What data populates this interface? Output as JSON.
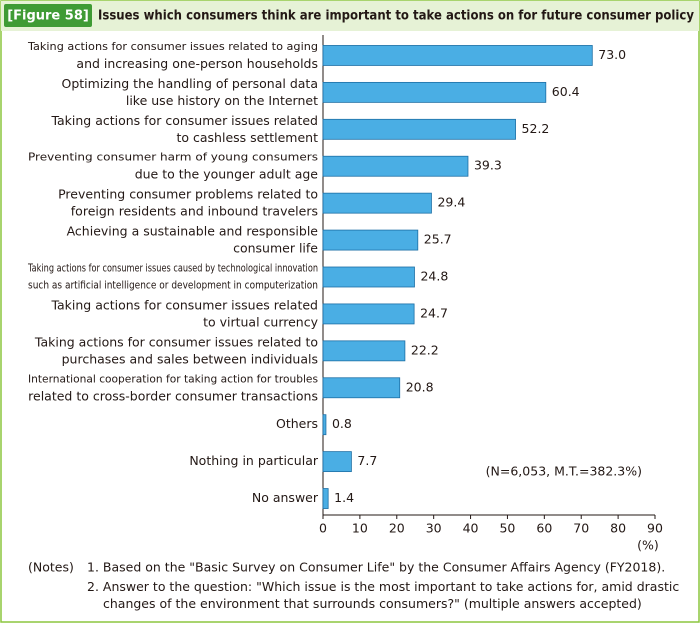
{
  "chart_data": {
    "type": "bar",
    "orientation": "horizontal",
    "figure_label": "[Figure 58]",
    "title": "Issues which consumers think are important to take actions on for future consumer policy",
    "categories": [
      "Taking actions for consumer issues related to aging\nand increasing  one-person households",
      "Optimizing the handling of personal data\nlike use history on the Internet",
      "Taking actions for consumer issues related\nto cashless settlement",
      "Preventing consumer harm of young consumers\ndue to the younger adult age",
      "Preventing consumer problems related to\nforeign residents and inbound travelers",
      "Achieving a sustainable and responsible\nconsumer life",
      "Taking actions for consumer issues caused by technological innovation\nsuch as artificial intelligence or development in computerization",
      "Taking actions for consumer issues related\nto virtual currency",
      "Taking actions for consumer issues related to\npurchases and sales between individuals",
      "International cooperation for taking action for troubles\nrelated to cross-border consumer transactions",
      "Others",
      "Nothing in particular",
      "No answer"
    ],
    "values": [
      73.0,
      60.4,
      52.2,
      39.3,
      29.4,
      25.7,
      24.8,
      24.7,
      22.2,
      20.8,
      0.8,
      7.7,
      1.4
    ],
    "value_labels": [
      "73.0",
      "60.4",
      "52.2",
      "39.3",
      "29.4",
      "25.7",
      "24.8",
      "24.7",
      "22.2",
      "20.8",
      "0.8",
      "7.7",
      "1.4"
    ],
    "color": "#4aaee4",
    "xlim": [
      0,
      90
    ],
    "xticks": [
      0,
      10,
      20,
      30,
      40,
      50,
      60,
      70,
      80,
      90
    ],
    "x_unit": "(%)",
    "annotation": "(N=6,053, M.T.=382.3%)",
    "notes_label": "(Notes)",
    "notes": [
      "1. Based on the \"Basic Survey on Consumer Life\" by the Consumer Affairs Agency (FY2018).",
      "2. Answer to the question: \"Which issue is the most important to take actions for, amid drastic\nchanges of the environment that surrounds consumers?\" (multiple answers accepted)"
    ]
  }
}
